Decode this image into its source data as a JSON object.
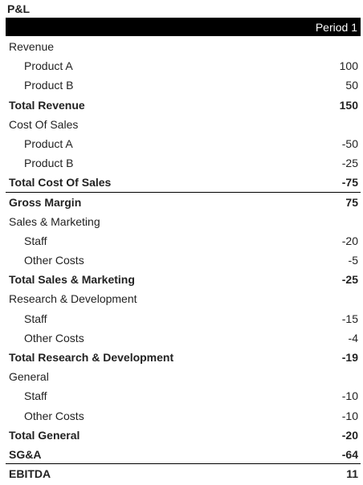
{
  "title": "P&L",
  "header": {
    "period": "Period 1"
  },
  "rows": [
    [
      "Revenue"
    ],
    [
      "Product A",
      100
    ],
    [
      "Product B",
      50
    ],
    [
      "Total Revenue",
      150
    ],
    [
      "Cost Of Sales"
    ],
    [
      "Product A",
      -50
    ],
    [
      "Product B",
      -25
    ],
    [
      "Total Cost Of Sales",
      -75
    ],
    [
      "Gross Margin",
      75
    ],
    [
      "Sales & Marketing"
    ],
    [
      "Staff",
      -20
    ],
    [
      "Other Costs",
      -5
    ],
    [
      "Total Sales & Marketing",
      -25
    ],
    [
      "Research & Development"
    ],
    [
      "Staff",
      -15
    ],
    [
      "Other Costs",
      -4
    ],
    [
      "Total Research & Development",
      -19
    ],
    [
      "General"
    ],
    [
      "Staff",
      -10
    ],
    [
      "Other Costs",
      -10
    ],
    [
      "Total General",
      -20
    ],
    [
      "SG&A",
      -64
    ],
    [
      "EBITDA",
      11
    ]
  ]
}
